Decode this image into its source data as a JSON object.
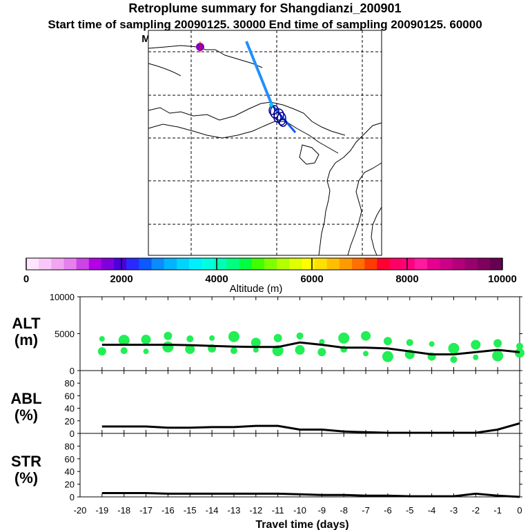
{
  "title": "Retroplume summary for Shangdianzi_200901",
  "subtitle": "Start time of sampling 20090125. 30000     End time of sampling 20090125. 60000",
  "met_line": "Meteorological data used is ECMWF",
  "map": {
    "description_icon": "map-trajectory",
    "plume_color": "#1e90ff",
    "source_marker_color": "#8000c0",
    "cluster_color": "#00008b"
  },
  "colorbar": {
    "label": "Altitude (m)",
    "ticks": [
      "0",
      "2000",
      "4000",
      "6000",
      "8000",
      "10000"
    ],
    "colors": [
      "#ffe6ff",
      "#f9c8f9",
      "#f2a6f2",
      "#e680ef",
      "#cc44e6",
      "#b300e6",
      "#8000dd",
      "#4b00dd",
      "#2a2aff",
      "#0a5aff",
      "#0a8cff",
      "#00b4ff",
      "#00d4ff",
      "#00f0ff",
      "#00ffe0",
      "#00ffb4",
      "#00ff80",
      "#00ff40",
      "#40ff00",
      "#80ff00",
      "#b4ff00",
      "#e0ff00",
      "#ffff00",
      "#ffe000",
      "#ffbf00",
      "#ff9a00",
      "#ff7000",
      "#ff3c00",
      "#ff0030",
      "#ff0066",
      "#ff0080",
      "#ff1aa0",
      "#e60090",
      "#cc0088",
      "#b3007a",
      "#990070",
      "#80005e",
      "#660050"
    ]
  },
  "chart_data": [
    {
      "type": "line",
      "panel": "ALT",
      "ylabel": "ALT\n(m)",
      "ylabel_line1": "ALT",
      "ylabel_line2": "(m)",
      "ylim": [
        0,
        10000
      ],
      "yticks": [
        "10000",
        "5000",
        "0"
      ],
      "yticks_values": [
        10000,
        5000,
        0
      ],
      "x": [
        -19,
        -18,
        -17,
        -16,
        -15,
        -14,
        -13,
        -12,
        -11,
        -10,
        -9,
        -8,
        -7,
        -6,
        -5,
        -4,
        -3,
        -2,
        -1,
        0
      ],
      "values": [
        3500,
        3500,
        3500,
        3500,
        3450,
        3350,
        3250,
        3200,
        3200,
        3800,
        3500,
        3100,
        3100,
        3000,
        2600,
        2200,
        2200,
        2500,
        2800,
        2500
      ],
      "scatter_points": [
        {
          "x": -19,
          "y": 4300
        },
        {
          "x": -19,
          "y": 2600
        },
        {
          "x": -18,
          "y": 4100
        },
        {
          "x": -18,
          "y": 2700
        },
        {
          "x": -17,
          "y": 4200
        },
        {
          "x": -17,
          "y": 2600
        },
        {
          "x": -16,
          "y": 4700
        },
        {
          "x": -16,
          "y": 3200
        },
        {
          "x": -15,
          "y": 4300
        },
        {
          "x": -15,
          "y": 2900
        },
        {
          "x": -14,
          "y": 4400
        },
        {
          "x": -14,
          "y": 3000
        },
        {
          "x": -13,
          "y": 4600
        },
        {
          "x": -13,
          "y": 2700
        },
        {
          "x": -12,
          "y": 3800
        },
        {
          "x": -12,
          "y": 2800
        },
        {
          "x": -11,
          "y": 4400
        },
        {
          "x": -11,
          "y": 2700
        },
        {
          "x": -10,
          "y": 4700
        },
        {
          "x": -10,
          "y": 2800
        },
        {
          "x": -9,
          "y": 3900
        },
        {
          "x": -9,
          "y": 2500
        },
        {
          "x": -8,
          "y": 4400
        },
        {
          "x": -8,
          "y": 2900
        },
        {
          "x": -7,
          "y": 4700
        },
        {
          "x": -7,
          "y": 2300
        },
        {
          "x": -6,
          "y": 4000
        },
        {
          "x": -6,
          "y": 1900
        },
        {
          "x": -5,
          "y": 3800
        },
        {
          "x": -5,
          "y": 2200
        },
        {
          "x": -4,
          "y": 3600
        },
        {
          "x": -4,
          "y": 1900
        },
        {
          "x": -3,
          "y": 3000
        },
        {
          "x": -3,
          "y": 1500
        },
        {
          "x": -2,
          "y": 3500
        },
        {
          "x": -2,
          "y": 1800
        },
        {
          "x": -1,
          "y": 3700
        },
        {
          "x": -1,
          "y": 2000
        },
        {
          "x": 0,
          "y": 3300
        },
        {
          "x": 0,
          "y": 2400
        }
      ],
      "scatter_color": "#22ee55",
      "line_color": "#000000"
    },
    {
      "type": "line",
      "panel": "ABL",
      "ylabel_line1": "ABL",
      "ylabel_line2": "(%)",
      "ylim": [
        0,
        100
      ],
      "yticks": [
        "80",
        "60",
        "40",
        "20",
        "0"
      ],
      "yticks_values": [
        80,
        60,
        40,
        20,
        0
      ],
      "x": [
        -19,
        -18,
        -17,
        -16,
        -15,
        -14,
        -13,
        -12,
        -11,
        -10,
        -9,
        -8,
        -7,
        -6,
        -5,
        -4,
        -3,
        -2,
        -1,
        0
      ],
      "values": [
        11,
        11,
        11,
        9,
        9,
        10,
        10,
        12,
        12,
        6,
        6,
        3,
        2,
        1,
        1,
        1,
        1,
        1,
        6,
        16
      ],
      "line_color": "#000000"
    },
    {
      "type": "line",
      "panel": "STR",
      "ylabel_line1": "STR",
      "ylabel_line2": "(%)",
      "ylim": [
        0,
        100
      ],
      "yticks": [
        "80",
        "60",
        "40",
        "20",
        "0"
      ],
      "yticks_values": [
        80,
        60,
        40,
        20,
        0
      ],
      "x": [
        -19,
        -18,
        -17,
        -16,
        -15,
        -14,
        -13,
        -12,
        -11,
        -10,
        -9,
        -8,
        -7,
        -6,
        -5,
        -4,
        -3,
        -2,
        -1,
        0
      ],
      "values": [
        6,
        6,
        6,
        5,
        5,
        5,
        5,
        5,
        5,
        4,
        3,
        3,
        2,
        2,
        1,
        1,
        1,
        5,
        2,
        0
      ],
      "line_color": "#000000"
    }
  ],
  "xaxis": {
    "label": "Travel time (days)",
    "xlim": [
      -20,
      0
    ],
    "ticks": [
      "-20",
      "-19",
      "-18",
      "-17",
      "-16",
      "-15",
      "-14",
      "-13",
      "-12",
      "-11",
      "-10",
      "-9",
      "-8",
      "-7",
      "-6",
      "-5",
      "-4",
      "-3",
      "-2",
      "-1",
      "0"
    ],
    "tick_values": [
      -20,
      -19,
      -18,
      -17,
      -16,
      -15,
      -14,
      -13,
      -12,
      -11,
      -10,
      -9,
      -8,
      -7,
      -6,
      -5,
      -4,
      -3,
      -2,
      -1,
      0
    ]
  }
}
